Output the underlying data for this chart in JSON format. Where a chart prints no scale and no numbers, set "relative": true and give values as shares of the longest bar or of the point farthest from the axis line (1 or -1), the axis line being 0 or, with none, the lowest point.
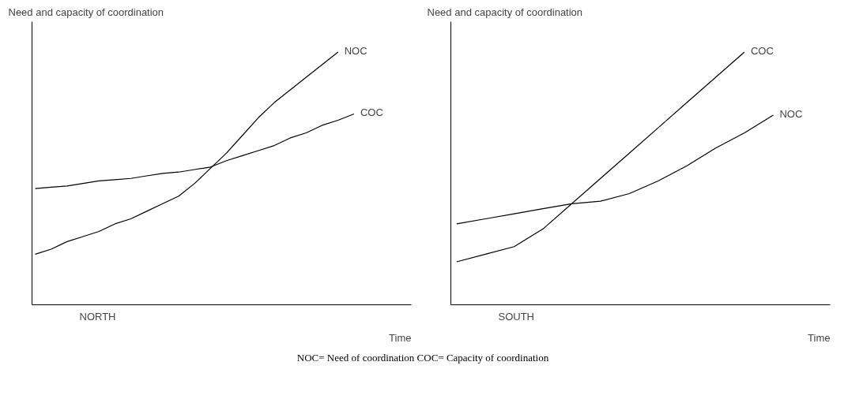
{
  "chart_data": [
    {
      "type": "line",
      "relative": true,
      "ylabel": "Need and capacity of coordination",
      "xlabel": "Time",
      "subtitle": "NORTH",
      "categories": [
        null,
        null,
        null,
        null,
        null,
        null,
        null,
        null,
        null,
        null,
        null,
        null,
        null,
        null,
        null,
        null,
        null,
        null,
        null,
        null,
        null
      ],
      "series": [
        {
          "name": "NOC",
          "color": "#000000",
          "values": [
            0.2,
            0.22,
            0.25,
            0.27,
            0.29,
            0.32,
            0.34,
            0.37,
            0.4,
            0.43,
            0.48,
            0.54,
            0.6,
            0.67,
            0.74,
            0.8,
            0.85,
            0.9,
            0.95,
            1.0,
            null
          ]
        },
        {
          "name": "COC",
          "color": "#000000",
          "values": [
            0.46,
            0.465,
            0.47,
            0.48,
            0.49,
            0.495,
            0.5,
            0.51,
            0.52,
            0.525,
            0.535,
            0.545,
            0.57,
            0.59,
            0.61,
            0.63,
            0.66,
            0.68,
            0.71,
            0.73,
            0.755
          ]
        }
      ],
      "annotations": [
        "NOC= Need of coordination  COC= Capacity of coordination"
      ]
    },
    {
      "type": "line",
      "relative": true,
      "ylabel": "Need and capacity of coordination",
      "xlabel": "Time",
      "subtitle": "SOUTH",
      "categories": [
        null,
        null,
        null,
        null,
        null,
        null,
        null,
        null,
        null,
        null,
        null,
        null
      ],
      "series": [
        {
          "name": "COC",
          "color": "#000000",
          "values": [
            0.17,
            0.2,
            0.23,
            0.3,
            0.4,
            0.5,
            0.6,
            0.7,
            0.8,
            0.9,
            1.0,
            null
          ]
        },
        {
          "name": "NOC",
          "color": "#000000",
          "values": [
            0.32,
            0.34,
            0.36,
            0.38,
            0.4,
            0.41,
            0.44,
            0.49,
            0.55,
            0.62,
            0.68,
            0.75
          ]
        }
      ]
    }
  ]
}
